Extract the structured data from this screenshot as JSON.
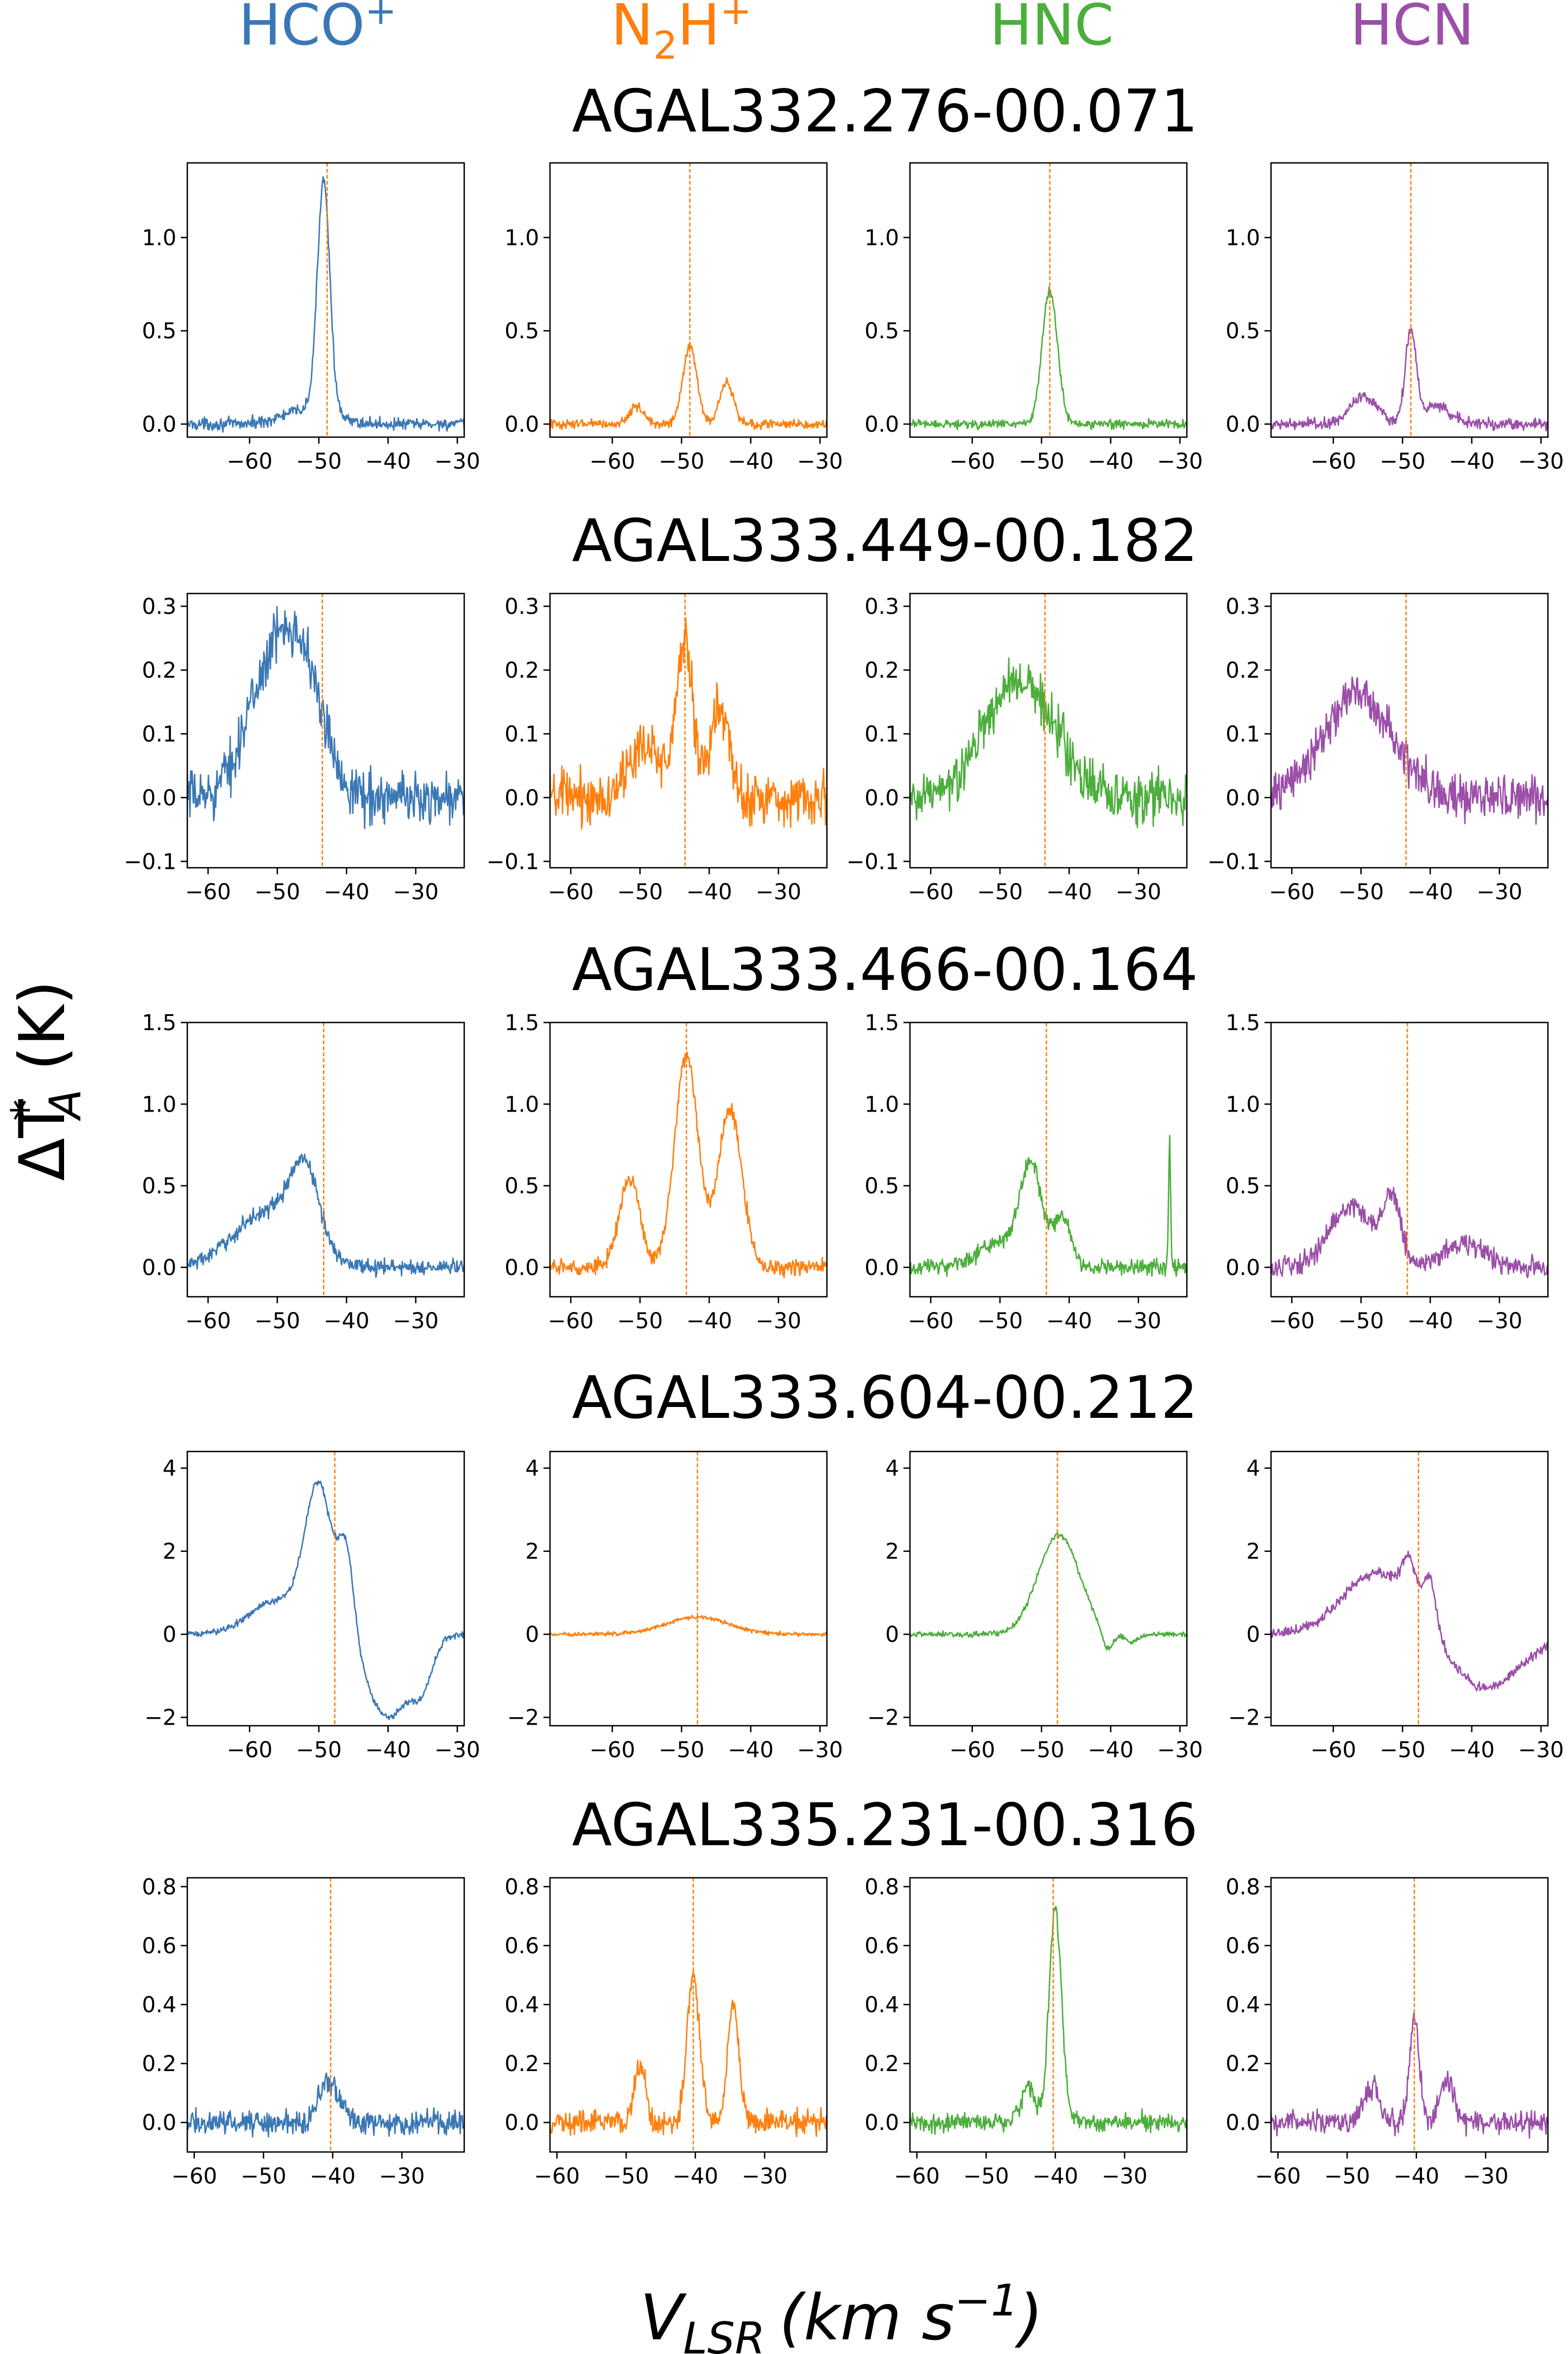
{
  "figure": {
    "ylabel_sym": "ΔT",
    "ylabel_sup": "*",
    "ylabel_sub": "A",
    "ylabel_unit": "(K)",
    "xlabel_sym": "V",
    "xlabel_sub": "LSR",
    "xlabel_unit": "(km s",
    "xlabel_exp": "−1",
    "xlabel_close": ")"
  },
  "columns": [
    {
      "name": "HCO",
      "sub": "",
      "sup": "+",
      "color": "#3a78b5"
    },
    {
      "name": "N",
      "sub": "2",
      "name2": "H",
      "sup": "+",
      "color": "#ff7f0e"
    },
    {
      "name": "HNC",
      "sub": "",
      "sup": "",
      "color": "#4cae3c"
    },
    {
      "name": "HCN",
      "sub": "",
      "sup": "",
      "color": "#9b4fa8"
    }
  ],
  "chart_data": [
    {
      "type": "line",
      "title": "AGAL332.276-00.071",
      "xlabel": "V_LSR (km s^-1)",
      "ylabel": "ΔT*_A (K)",
      "xlim": [
        -69,
        -29
      ],
      "ylim": [
        -0.07,
        1.4
      ],
      "xticks": [
        -60,
        -50,
        -40,
        -30
      ],
      "xtick_labels": [
        "−60",
        "−50",
        "−40",
        "−30"
      ],
      "yticks": [
        0.0,
        0.5,
        1.0
      ],
      "ytick_labels": [
        "0.0",
        "0.5",
        "1.0"
      ],
      "vline": -48.8,
      "series": [
        {
          "name": "HCO+",
          "noise": 0.02,
          "baseline": 0.0,
          "peaks": [
            {
              "v": -49.3,
              "a": 1.25,
              "w": 0.9
            },
            {
              "v": -51.5,
              "a": 0.08,
              "w": 3.5
            }
          ]
        },
        {
          "name": "N2H+",
          "noise": 0.015,
          "baseline": 0.0,
          "peaks": [
            {
              "v": -48.8,
              "a": 0.42,
              "w": 1.0
            },
            {
              "v": -43.5,
              "a": 0.22,
              "w": 1.0
            },
            {
              "v": -56.5,
              "a": 0.1,
              "w": 1.0
            }
          ]
        },
        {
          "name": "HNC",
          "noise": 0.015,
          "baseline": 0.0,
          "peaks": [
            {
              "v": -48.8,
              "a": 0.72,
              "w": 1.1
            }
          ]
        },
        {
          "name": "HCN",
          "noise": 0.02,
          "baseline": 0.0,
          "peaks": [
            {
              "v": -48.8,
              "a": 0.5,
              "w": 0.8
            },
            {
              "v": -55.5,
              "a": 0.15,
              "w": 2.0
            },
            {
              "v": -45.0,
              "a": 0.1,
              "w": 1.8
            }
          ]
        }
      ]
    },
    {
      "type": "line",
      "title": "AGAL333.449-00.182",
      "xlabel": "V_LSR (km s^-1)",
      "ylabel": "ΔT*_A (K)",
      "xlim": [
        -63,
        -23
      ],
      "ylim": [
        -0.11,
        0.32
      ],
      "xticks": [
        -60,
        -50,
        -40,
        -30
      ],
      "xtick_labels": [
        "−60",
        "−50",
        "−40",
        "−30"
      ],
      "yticks": [
        -0.1,
        0.0,
        0.1,
        0.2,
        0.3
      ],
      "ytick_labels": [
        "−0.1",
        "0.0",
        "0.1",
        "0.2",
        "0.3"
      ],
      "vline": -43.5,
      "series": [
        {
          "name": "HCO+",
          "noise": 0.025,
          "baseline": 0.0,
          "peaks": [
            {
              "v": -47.5,
              "a": 0.25,
              "w": 3.5
            },
            {
              "v": -53.0,
              "a": 0.1,
              "w": 3.0
            }
          ]
        },
        {
          "name": "N2H+",
          "noise": 0.025,
          "baseline": 0.0,
          "peaks": [
            {
              "v": -43.5,
              "a": 0.24,
              "w": 1.2
            },
            {
              "v": -38.5,
              "a": 0.14,
              "w": 1.3
            },
            {
              "v": -49.0,
              "a": 0.08,
              "w": 2.5
            }
          ]
        },
        {
          "name": "HNC",
          "noise": 0.025,
          "baseline": 0.0,
          "peaks": [
            {
              "v": -46.0,
              "a": 0.17,
              "w": 4.5
            },
            {
              "v": -52.0,
              "a": 0.05,
              "w": 3.0
            }
          ]
        },
        {
          "name": "HCN",
          "noise": 0.02,
          "baseline": 0.0,
          "peaks": [
            {
              "v": -50.5,
              "a": 0.16,
              "w": 5.0
            }
          ]
        }
      ]
    },
    {
      "type": "line",
      "title": "AGAL333.466-00.164",
      "xlabel": "V_LSR (km s^-1)",
      "ylabel": "ΔT*_A (K)",
      "xlim": [
        -63,
        -23
      ],
      "ylim": [
        -0.18,
        1.5
      ],
      "xticks": [
        -60,
        -50,
        -40,
        -30
      ],
      "xtick_labels": [
        "−60",
        "−50",
        "−40",
        "−30"
      ],
      "yticks": [
        0.0,
        0.5,
        1.0,
        1.5
      ],
      "ytick_labels": [
        "0.0",
        "0.5",
        "1.0",
        "1.5"
      ],
      "vline": -43.3,
      "series": [
        {
          "name": "HCO+",
          "noise": 0.03,
          "baseline": 0.0,
          "peaks": [
            {
              "v": -46.0,
              "a": 0.45,
              "w": 2.0
            },
            {
              "v": -51.0,
              "a": 0.35,
              "w": 5.0
            }
          ]
        },
        {
          "name": "N2H+",
          "noise": 0.03,
          "baseline": 0.0,
          "peaks": [
            {
              "v": -43.3,
              "a": 1.3,
              "w": 1.7
            },
            {
              "v": -37.0,
              "a": 0.97,
              "w": 1.7
            },
            {
              "v": -51.5,
              "a": 0.55,
              "w": 1.5
            }
          ]
        },
        {
          "name": "HNC",
          "noise": 0.03,
          "baseline": 0.0,
          "peaks": [
            {
              "v": -45.5,
              "a": 0.6,
              "w": 1.6
            },
            {
              "v": -41.0,
              "a": 0.3,
              "w": 1.3
            },
            {
              "v": -50.0,
              "a": 0.15,
              "w": 3.0
            },
            {
              "v": -25.5,
              "a": 0.78,
              "w": 0.15
            }
          ]
        },
        {
          "name": "HCN",
          "noise": 0.04,
          "baseline": 0.0,
          "peaks": [
            {
              "v": -51.5,
              "a": 0.38,
              "w": 3.0
            },
            {
              "v": -45.5,
              "a": 0.4,
              "w": 1.3
            },
            {
              "v": -35.0,
              "a": 0.15,
              "w": 3.0
            }
          ]
        }
      ]
    },
    {
      "type": "line",
      "title": "AGAL333.604-00.212",
      "xlabel": "V_LSR (km s^-1)",
      "ylabel": "ΔT*_A (K)",
      "xlim": [
        -69,
        -29
      ],
      "ylim": [
        -2.2,
        4.4
      ],
      "xticks": [
        -60,
        -50,
        -40,
        -30
      ],
      "xtick_labels": [
        "−60",
        "−50",
        "−40",
        "−30"
      ],
      "yticks": [
        -2,
        0,
        2,
        4
      ],
      "ytick_labels": [
        "−2",
        "0",
        "2",
        "4"
      ],
      "vline": -47.7,
      "series": [
        {
          "name": "HCO+",
          "noise": 0.05,
          "baseline": 0.0,
          "peaks": [
            {
              "v": -50.0,
              "a": 3.4,
              "w": 2.0
            },
            {
              "v": -46.0,
              "a": 2.0,
              "w": 1.1
            },
            {
              "v": -56.0,
              "a": 0.8,
              "w": 4.0
            },
            {
              "v": -40.0,
              "a": -2.0,
              "w": 3.0
            },
            {
              "v": -35.0,
              "a": -1.0,
              "w": 1.5
            }
          ]
        },
        {
          "name": "N2H+",
          "noise": 0.03,
          "baseline": 0.0,
          "peaks": [
            {
              "v": -47.7,
              "a": 0.42,
              "w": 4.5
            }
          ]
        },
        {
          "name": "HNC",
          "noise": 0.04,
          "baseline": 0.0,
          "peaks": [
            {
              "v": -47.5,
              "a": 2.4,
              "w": 3.0
            },
            {
              "v": -40.5,
              "a": -0.5,
              "w": 0.8
            },
            {
              "v": -37.0,
              "a": -0.2,
              "w": 1.0
            }
          ]
        },
        {
          "name": "HCN",
          "noise": 0.08,
          "baseline": 0.0,
          "peaks": [
            {
              "v": -53.5,
              "a": 1.5,
              "w": 5.0
            },
            {
              "v": -49.0,
              "a": 1.0,
              "w": 1.0
            },
            {
              "v": -46.0,
              "a": 1.2,
              "w": 0.9
            },
            {
              "v": -38.0,
              "a": -1.3,
              "w": 5.0
            }
          ]
        }
      ]
    },
    {
      "type": "line",
      "title": "AGAL335.231-00.316",
      "xlabel": "V_LSR (km s^-1)",
      "ylabel": "ΔT*_A (K)",
      "xlim": [
        -61,
        -21
      ],
      "ylim": [
        -0.1,
        0.83
      ],
      "xticks": [
        -60,
        -50,
        -40,
        -30
      ],
      "xtick_labels": [
        "−60",
        "−50",
        "−40",
        "−30"
      ],
      "yticks": [
        0.0,
        0.2,
        0.4,
        0.6,
        0.8
      ],
      "ytick_labels": [
        "0.0",
        "0.2",
        "0.4",
        "0.6",
        "0.8"
      ],
      "vline": -40.3,
      "series": [
        {
          "name": "HCO+",
          "noise": 0.025,
          "baseline": 0.0,
          "peaks": [
            {
              "v": -40.5,
              "a": 0.14,
              "w": 1.5
            }
          ]
        },
        {
          "name": "N2H+",
          "noise": 0.025,
          "baseline": 0.0,
          "peaks": [
            {
              "v": -40.3,
              "a": 0.5,
              "w": 0.9
            },
            {
              "v": -34.5,
              "a": 0.4,
              "w": 0.8
            },
            {
              "v": -48.0,
              "a": 0.2,
              "w": 0.8
            }
          ]
        },
        {
          "name": "HNC",
          "noise": 0.02,
          "baseline": 0.0,
          "peaks": [
            {
              "v": -40.0,
              "a": 0.72,
              "w": 0.9
            },
            {
              "v": -44.0,
              "a": 0.12,
              "w": 1.0
            }
          ]
        },
        {
          "name": "HCN",
          "noise": 0.025,
          "baseline": 0.0,
          "peaks": [
            {
              "v": -40.3,
              "a": 0.35,
              "w": 0.7
            },
            {
              "v": -46.5,
              "a": 0.12,
              "w": 1.2
            },
            {
              "v": -35.5,
              "a": 0.15,
              "w": 1.0
            }
          ]
        }
      ]
    }
  ]
}
